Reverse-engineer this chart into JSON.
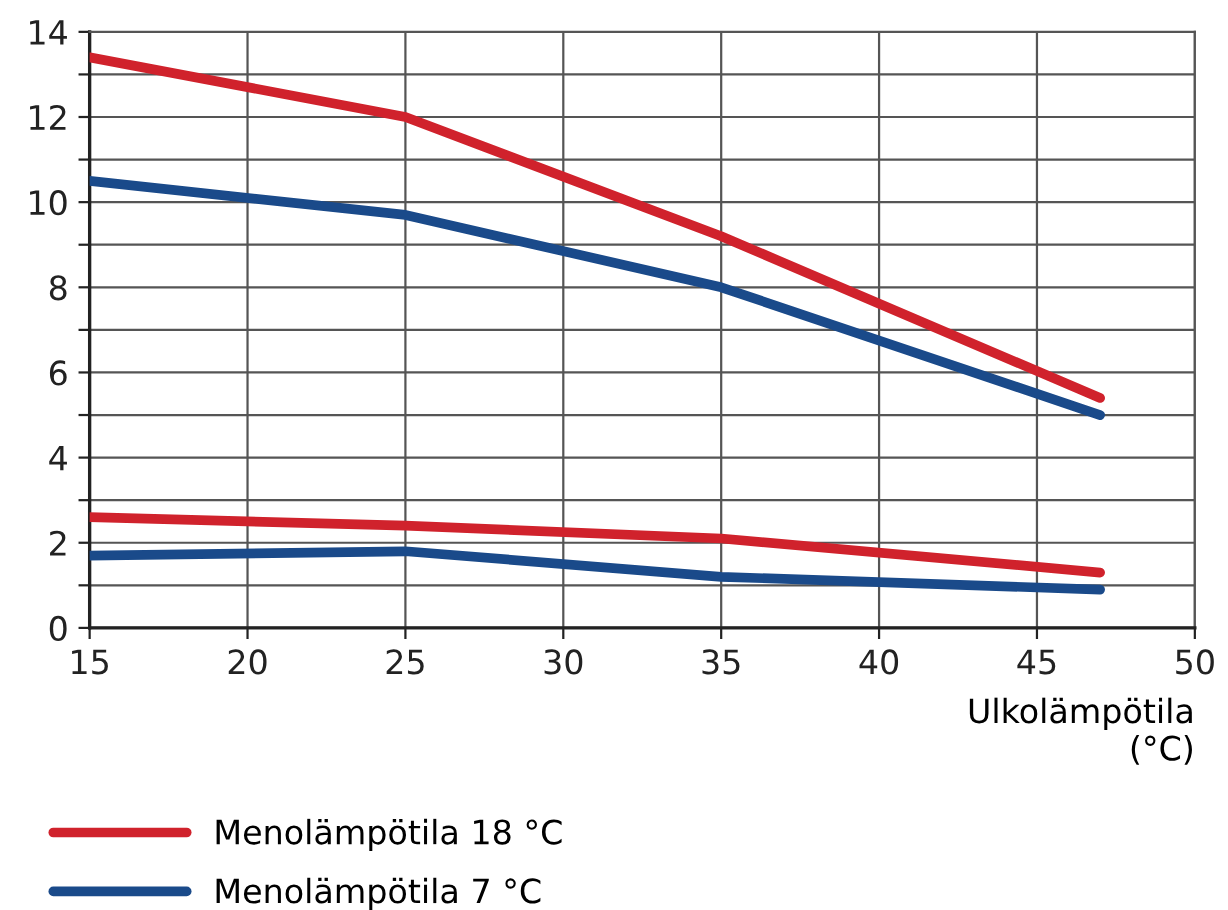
{
  "chart_data": {
    "type": "line",
    "xlabel": "Ulkolämpötila\n(°C)",
    "xlim": [
      15,
      50
    ],
    "xticks": [
      15,
      20,
      25,
      30,
      35,
      40,
      45,
      50
    ],
    "ylim": [
      0,
      14
    ],
    "yticks": [
      0,
      {
        "value": 1,
        "label": null
      },
      2,
      {
        "value": 3,
        "label": null
      },
      4,
      {
        "value": 5,
        "label": null
      },
      6,
      {
        "value": 7,
        "label": null
      },
      8,
      {
        "value": 9,
        "label": null
      },
      10,
      {
        "value": 11,
        "label": null
      },
      12,
      {
        "value": 13,
        "label": null
      },
      14
    ],
    "grid": true,
    "legend": "bottom",
    "marker": "none",
    "line_style": "solid",
    "series": [
      {
        "name": "Menolämpötila 18 °C",
        "color": "#d0222c",
        "x": [
          15,
          25,
          35,
          47
        ],
        "values": [
          13.4,
          12.0,
          9.2,
          5.4
        ]
      },
      {
        "name": "Menolämpötila 7 °C",
        "color": "#1a4a8a",
        "x": [
          15,
          25,
          35,
          47
        ],
        "values": [
          10.5,
          9.7,
          8.0,
          5.0
        ]
      },
      {
        "color": "#d0222c",
        "x": [
          15,
          25,
          35,
          47
        ],
        "values": [
          2.6,
          2.4,
          2.1,
          1.3
        ]
      },
      {
        "color": "#1a4a8a",
        "x": [
          15,
          25,
          35,
          47
        ],
        "values": [
          1.7,
          1.8,
          1.2,
          0.9
        ]
      }
    ]
  }
}
